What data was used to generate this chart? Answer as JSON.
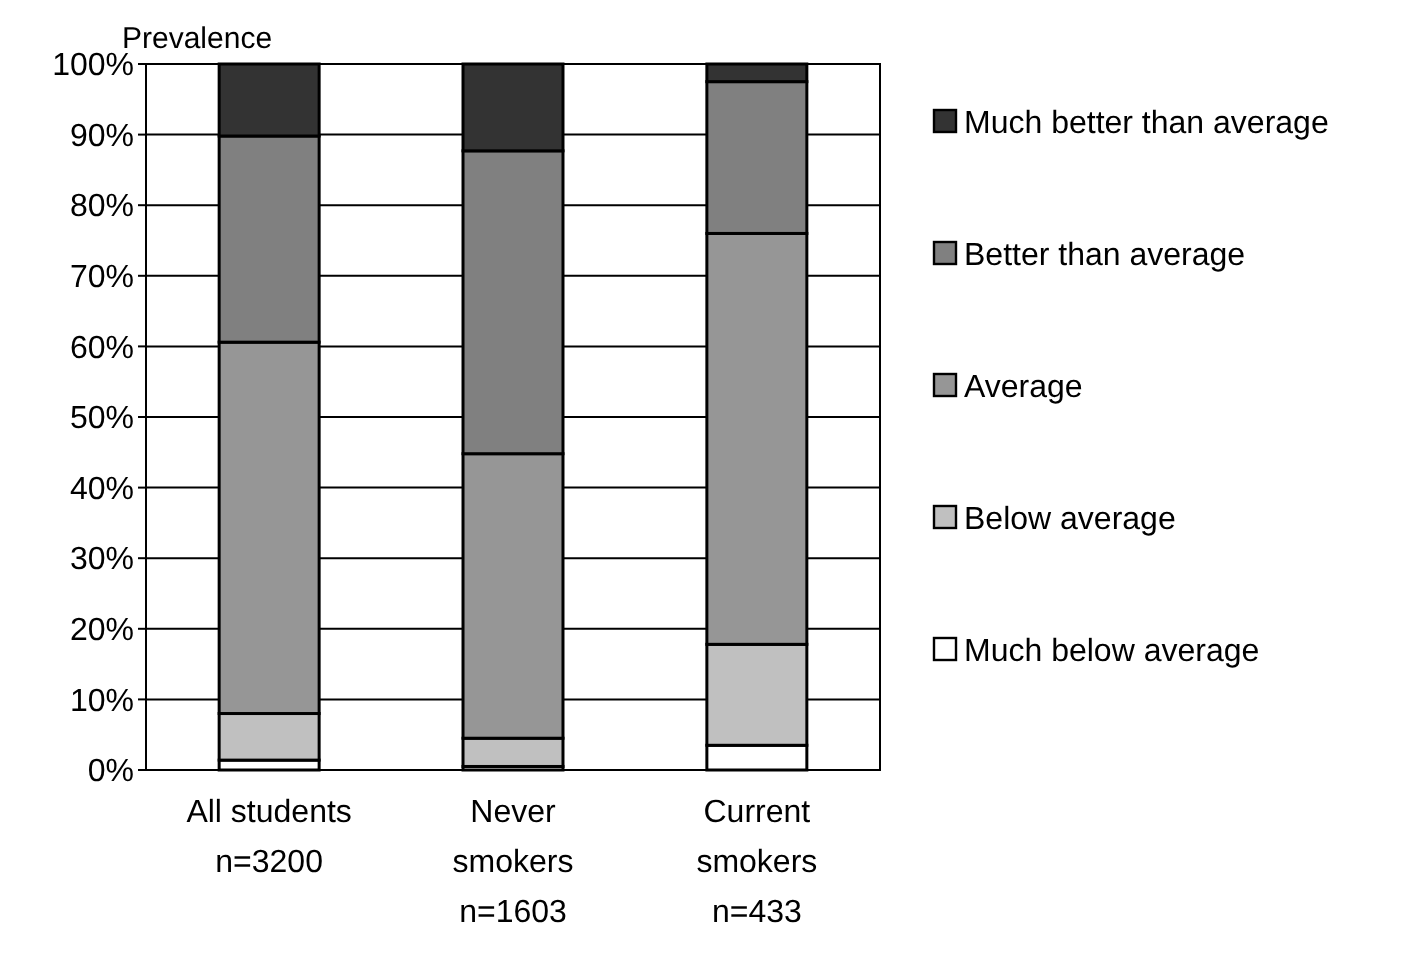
{
  "chart_data": {
    "type": "bar",
    "stacked": true,
    "ylabel": "Prevalence",
    "categories": [
      "All students\nn=3200",
      "Never\nsmokers\nn=1603",
      "Current\nsmokers\nn=433"
    ],
    "series": [
      {
        "name": "Much below average",
        "color": "#ffffff",
        "values": [
          1.4,
          0.5,
          3.5
        ]
      },
      {
        "name": "Below average",
        "color": "#c0c0c0",
        "values": [
          6.6,
          4.0,
          14.3
        ]
      },
      {
        "name": "Average",
        "color": "#969696",
        "values": [
          52.6,
          40.3,
          58.2
        ]
      },
      {
        "name": "Better than average",
        "color": "#808080",
        "values": [
          29.2,
          42.9,
          21.5
        ]
      },
      {
        "name": "Much better than average",
        "color": "#333333",
        "values": [
          10.2,
          12.3,
          2.5
        ]
      }
    ],
    "ylim": [
      0,
      100
    ],
    "yticks": [
      {
        "value": 0,
        "label": "0%"
      },
      {
        "value": 10,
        "label": "10%"
      },
      {
        "value": 20,
        "label": "20%"
      },
      {
        "value": 30,
        "label": "30%"
      },
      {
        "value": 40,
        "label": "40%"
      },
      {
        "value": 50,
        "label": "50%"
      },
      {
        "value": 60,
        "label": "60%"
      },
      {
        "value": 70,
        "label": "70%"
      },
      {
        "value": 80,
        "label": "80%"
      },
      {
        "value": 90,
        "label": "90%"
      },
      {
        "value": 100,
        "label": "100%"
      }
    ],
    "grid": "y",
    "legend": "right"
  }
}
